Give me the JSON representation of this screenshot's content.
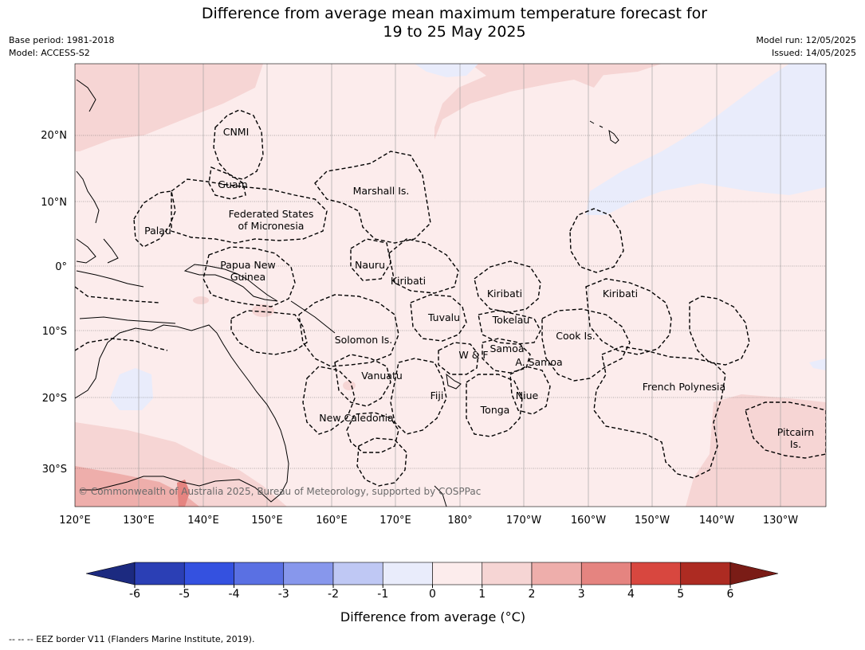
{
  "title": {
    "line1": "Difference from average mean maximum temperature forecast for",
    "line2": "19 to 25 May 2025"
  },
  "meta_left": {
    "base_period": "Base period: 1981-2018",
    "model": "Model: ACCESS-S2"
  },
  "meta_right": {
    "model_run": "Model run: 12/05/2025",
    "issued": "Issued: 14/05/2025"
  },
  "map": {
    "lon_ticks": [
      "120°E",
      "130°E",
      "140°E",
      "150°E",
      "160°E",
      "170°E",
      "180°",
      "170°W",
      "160°W",
      "150°W",
      "140°W",
      "130°W"
    ],
    "lat_ticks": [
      "20°N",
      "10°N",
      "0°",
      "10°S",
      "20°S",
      "30°S"
    ],
    "regions": [
      {
        "name": "CNMI"
      },
      {
        "name": "Guam"
      },
      {
        "name": "Marshall Is."
      },
      {
        "name": "Federated States"
      },
      {
        "name": "of Micronesia"
      },
      {
        "name": "Palau"
      },
      {
        "name": "Nauru"
      },
      {
        "name": "Papua New"
      },
      {
        "name": "Guinea"
      },
      {
        "name": "Kiribati"
      },
      {
        "name": "Kiribati"
      },
      {
        "name": "Kiribati"
      },
      {
        "name": "Tuvalu"
      },
      {
        "name": "Tokelau"
      },
      {
        "name": "Cook Is."
      },
      {
        "name": "Solomon Is."
      },
      {
        "name": "Samoa"
      },
      {
        "name": "W & F"
      },
      {
        "name": "A. Samoa"
      },
      {
        "name": "Vanuatu"
      },
      {
        "name": "Fiji"
      },
      {
        "name": "Niue"
      },
      {
        "name": "French Polynesia"
      },
      {
        "name": "Tonga"
      },
      {
        "name": "New Caledonia"
      },
      {
        "name": "Pitcairn"
      },
      {
        "name": "Is."
      }
    ],
    "copyright": "© Commonwealth of Australia 2025, Bureau of Meteorology, supported by COSPPac"
  },
  "colorbar": {
    "ticks": [
      "-6",
      "-5",
      "-4",
      "-3",
      "-2",
      "-1",
      "0",
      "1",
      "2",
      "3",
      "4",
      "5",
      "6"
    ],
    "colors": [
      "#1c2a80",
      "#2b3fb5",
      "#3451e0",
      "#5a70e3",
      "#8797ec",
      "#bfc8f4",
      "#e9ecfb",
      "#fcecec",
      "#f6d5d4",
      "#eeaeab",
      "#e58480",
      "#d8473f",
      "#ad2b22",
      "#7a1c16"
    ],
    "title": "Difference from average (°C)"
  },
  "footnote": "--  --  -- EEZ border V11 (Flanders Marine Institute, 2019)."
}
